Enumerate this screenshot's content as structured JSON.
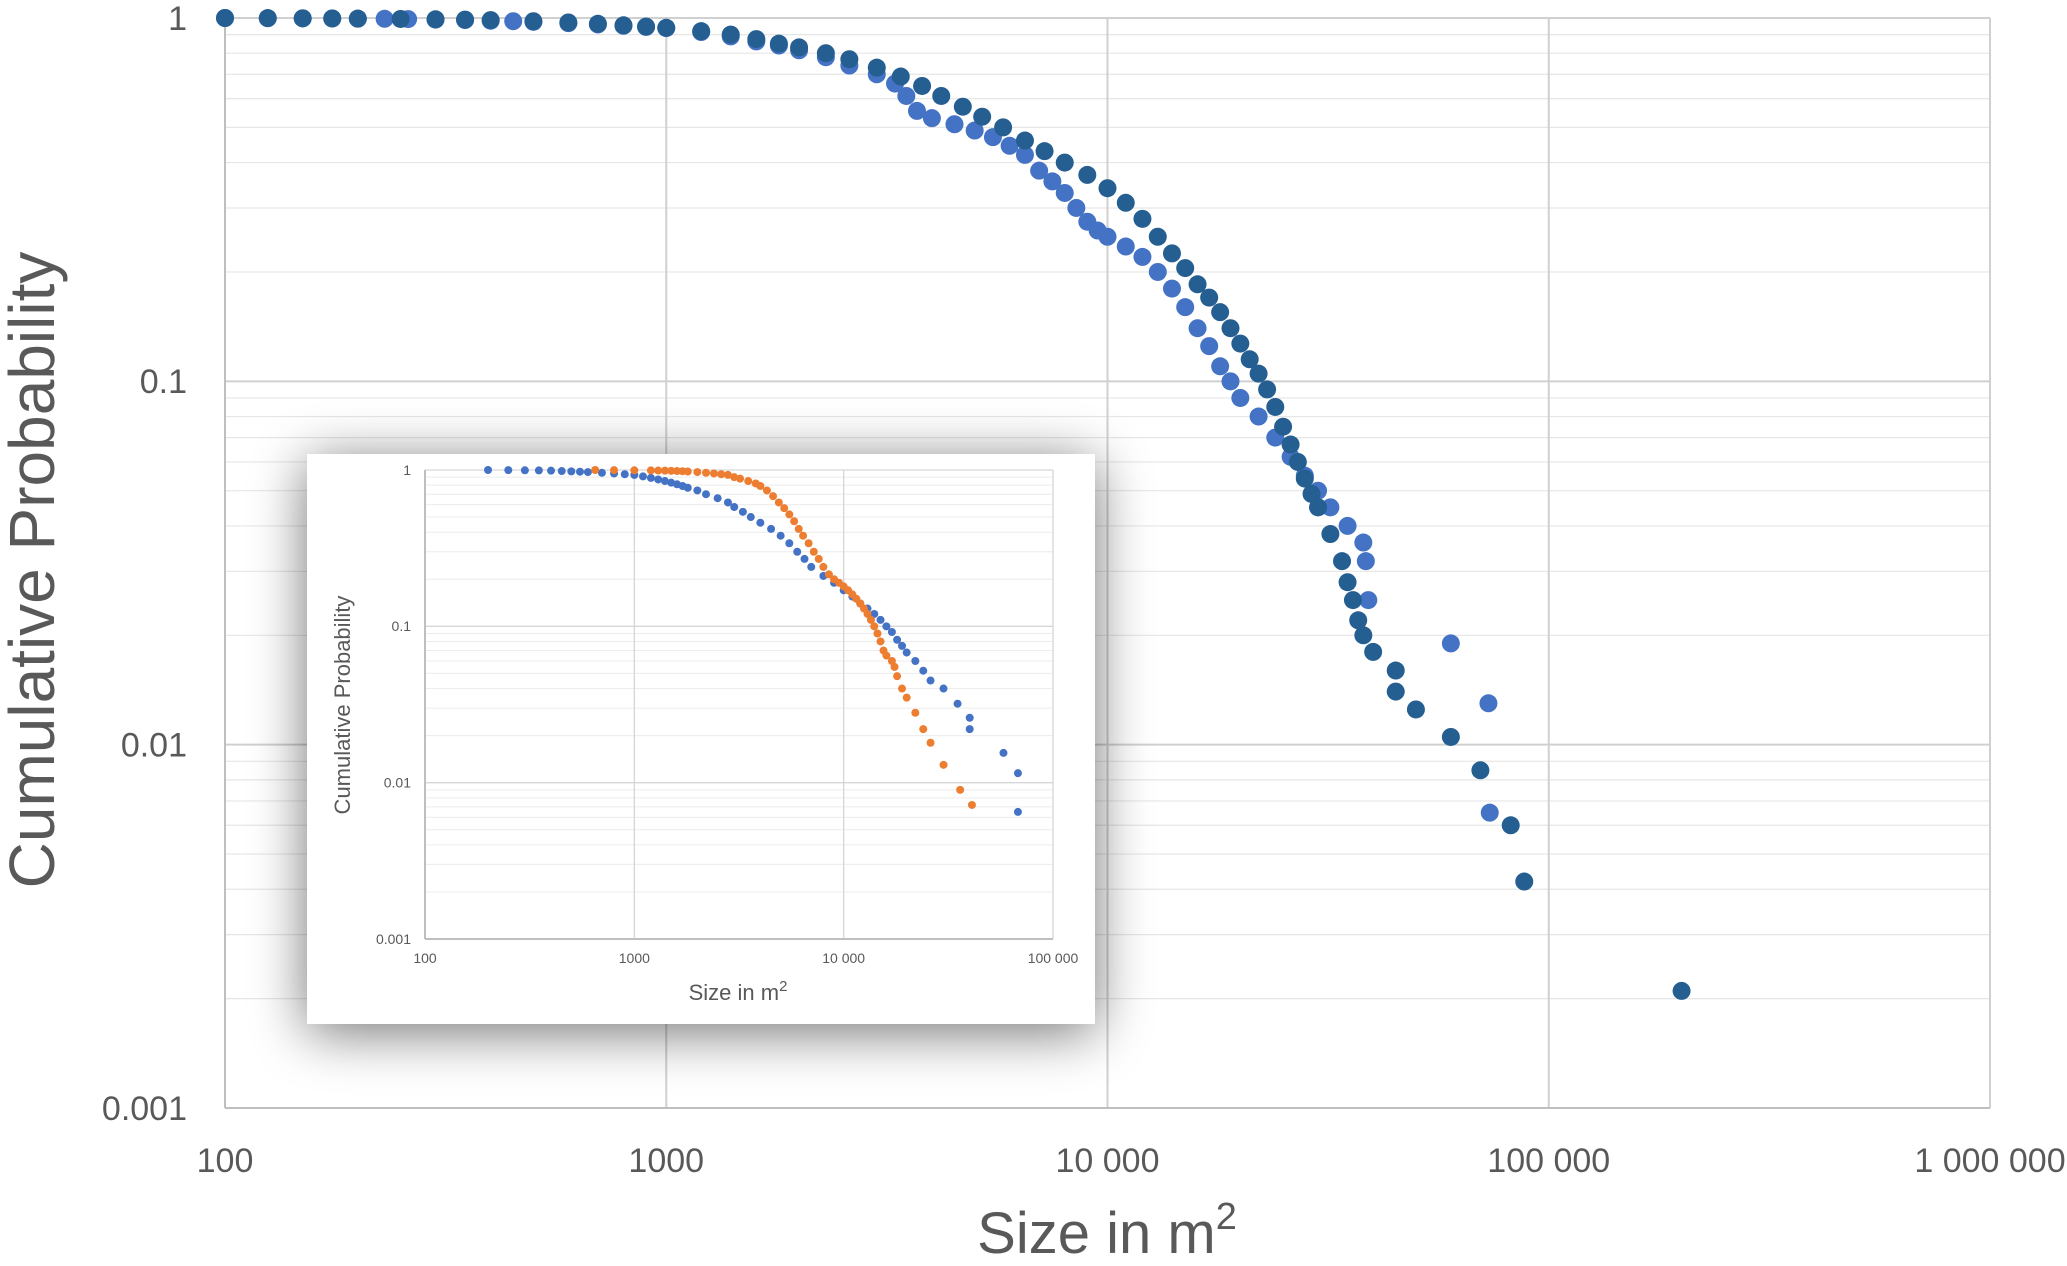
{
  "chart_data": [
    {
      "type": "scatter",
      "title": "",
      "xlabel": "Size in m",
      "xlabel_sup": "2",
      "ylabel": "Cumulative Probability",
      "x_scale": "log",
      "y_scale": "log",
      "xlim": [
        100,
        1000000
      ],
      "ylim": [
        0.001,
        1
      ],
      "x_ticks": [
        100,
        1000,
        10000,
        100000,
        1000000
      ],
      "x_tick_labels": [
        "100",
        "1000",
        "10 000",
        "100 000",
        "1 000 000"
      ],
      "y_ticks": [
        0.001,
        0.01,
        0.1,
        1
      ],
      "y_tick_labels": [
        "0.001",
        "0.01",
        "0.1",
        "1"
      ],
      "grid": true,
      "legend": "none",
      "series": [
        {
          "color": "#4472C4",
          "points": [
            [
              100,
              1
            ],
            [
              125,
              0.999
            ],
            [
              150,
              0.998
            ],
            [
              175,
              0.997
            ],
            [
              200,
              0.996
            ],
            [
              230,
              0.995
            ],
            [
              260,
              0.993
            ],
            [
              300,
              0.99
            ],
            [
              350,
              0.987
            ],
            [
              400,
              0.983
            ],
            [
              450,
              0.98
            ],
            [
              500,
              0.976
            ],
            [
              600,
              0.968
            ],
            [
              700,
              0.96
            ],
            [
              800,
              0.952
            ],
            [
              900,
              0.945
            ],
            [
              1000,
              0.938
            ],
            [
              1200,
              0.915
            ],
            [
              1400,
              0.89
            ],
            [
              1600,
              0.862
            ],
            [
              1800,
              0.84
            ],
            [
              2000,
              0.815
            ],
            [
              2300,
              0.78
            ],
            [
              2600,
              0.74
            ],
            [
              3000,
              0.7
            ],
            [
              3300,
              0.66
            ],
            [
              3500,
              0.61
            ],
            [
              3700,
              0.555
            ],
            [
              4000,
              0.53
            ],
            [
              4500,
              0.51
            ],
            [
              5000,
              0.49
            ],
            [
              5500,
              0.47
            ],
            [
              6000,
              0.445
            ],
            [
              6500,
              0.42
            ],
            [
              7000,
              0.38
            ],
            [
              7500,
              0.355
            ],
            [
              8000,
              0.33
            ],
            [
              8500,
              0.3
            ],
            [
              9000,
              0.275
            ],
            [
              9500,
              0.26
            ],
            [
              10000,
              0.25
            ],
            [
              11000,
              0.235
            ],
            [
              12000,
              0.22
            ],
            [
              13000,
              0.2
            ],
            [
              14000,
              0.18
            ],
            [
              15000,
              0.16
            ],
            [
              16000,
              0.14
            ],
            [
              17000,
              0.125
            ],
            [
              18000,
              0.11
            ],
            [
              19000,
              0.1
            ],
            [
              20000,
              0.09
            ],
            [
              22000,
              0.08
            ],
            [
              24000,
              0.07
            ],
            [
              26000,
              0.062
            ],
            [
              28000,
              0.055
            ],
            [
              30000,
              0.05
            ],
            [
              32000,
              0.045
            ],
            [
              35000,
              0.04
            ],
            [
              38000,
              0.036
            ],
            [
              39000,
              0.025
            ],
            [
              38500,
              0.032
            ],
            [
              60000,
              0.019
            ],
            [
              73000,
              0.013
            ],
            [
              73500,
              0.0065
            ]
          ]
        },
        {
          "color": "#255E91",
          "points": [
            [
              100,
              1
            ],
            [
              125,
              0.999
            ],
            [
              150,
              0.998
            ],
            [
              175,
              0.997
            ],
            [
              200,
              0.996
            ],
            [
              250,
              0.994
            ],
            [
              300,
              0.992
            ],
            [
              350,
              0.99
            ],
            [
              400,
              0.987
            ],
            [
              500,
              0.98
            ],
            [
              600,
              0.972
            ],
            [
              700,
              0.964
            ],
            [
              800,
              0.955
            ],
            [
              900,
              0.947
            ],
            [
              1000,
              0.94
            ],
            [
              1200,
              0.92
            ],
            [
              1400,
              0.9
            ],
            [
              1600,
              0.875
            ],
            [
              1800,
              0.85
            ],
            [
              2000,
              0.83
            ],
            [
              2300,
              0.8
            ],
            [
              2600,
              0.77
            ],
            [
              3000,
              0.73
            ],
            [
              3400,
              0.69
            ],
            [
              3800,
              0.65
            ],
            [
              4200,
              0.61
            ],
            [
              4700,
              0.57
            ],
            [
              5200,
              0.535
            ],
            [
              5800,
              0.5
            ],
            [
              6500,
              0.46
            ],
            [
              7200,
              0.43
            ],
            [
              8000,
              0.4
            ],
            [
              9000,
              0.37
            ],
            [
              10000,
              0.34
            ],
            [
              11000,
              0.31
            ],
            [
              12000,
              0.28
            ],
            [
              13000,
              0.25
            ],
            [
              14000,
              0.225
            ],
            [
              15000,
              0.205
            ],
            [
              16000,
              0.185
            ],
            [
              17000,
              0.17
            ],
            [
              18000,
              0.155
            ],
            [
              19000,
              0.14
            ],
            [
              20000,
              0.127
            ],
            [
              21000,
              0.115
            ],
            [
              22000,
              0.105
            ],
            [
              23000,
              0.095
            ],
            [
              24000,
              0.085
            ],
            [
              25000,
              0.075
            ],
            [
              26000,
              0.067
            ],
            [
              27000,
              0.06
            ],
            [
              28000,
              0.054
            ],
            [
              29000,
              0.049
            ],
            [
              30000,
              0.045
            ],
            [
              32000,
              0.038
            ],
            [
              34000,
              0.032
            ],
            [
              35000,
              0.028
            ],
            [
              36000,
              0.025
            ],
            [
              37000,
              0.022
            ],
            [
              38000,
              0.02
            ],
            [
              40000,
              0.018
            ],
            [
              45000,
              0.016
            ],
            [
              45000,
              0.014
            ],
            [
              50000,
              0.0125
            ],
            [
              60000,
              0.0105
            ],
            [
              70000,
              0.0085
            ],
            [
              82000,
              0.006
            ],
            [
              88000,
              0.0042
            ],
            [
              200000,
              0.0021
            ]
          ]
        }
      ]
    },
    {
      "type": "scatter",
      "title": "",
      "xlabel": "Size in m",
      "xlabel_sup": "2",
      "ylabel": "Cumulative Probability",
      "x_scale": "log",
      "y_scale": "log",
      "xlim": [
        100,
        100000
      ],
      "ylim": [
        0.001,
        1
      ],
      "x_ticks": [
        100,
        1000,
        10000,
        100000
      ],
      "x_tick_labels": [
        "100",
        "1000",
        "10 000",
        "100 000"
      ],
      "y_ticks": [
        0.001,
        0.01,
        0.1,
        1
      ],
      "y_tick_labels": [
        "0.001",
        "0.01",
        "0.1",
        "1"
      ],
      "grid": true,
      "legend": "none",
      "series": [
        {
          "color": "#4472C4",
          "points": [
            [
              200,
              1
            ],
            [
              250,
              0.998
            ],
            [
              300,
              0.996
            ],
            [
              350,
              0.994
            ],
            [
              400,
              0.99
            ],
            [
              450,
              0.985
            ],
            [
              500,
              0.98
            ],
            [
              550,
              0.975
            ],
            [
              600,
              0.97
            ],
            [
              700,
              0.96
            ],
            [
              800,
              0.95
            ],
            [
              900,
              0.94
            ],
            [
              1000,
              0.93
            ],
            [
              1100,
              0.91
            ],
            [
              1200,
              0.89
            ],
            [
              1300,
              0.87
            ],
            [
              1400,
              0.85
            ],
            [
              1500,
              0.83
            ],
            [
              1600,
              0.81
            ],
            [
              1700,
              0.79
            ],
            [
              1800,
              0.77
            ],
            [
              2000,
              0.74
            ],
            [
              2200,
              0.7
            ],
            [
              2500,
              0.66
            ],
            [
              2800,
              0.62
            ],
            [
              3000,
              0.58
            ],
            [
              3300,
              0.54
            ],
            [
              3600,
              0.5
            ],
            [
              4000,
              0.46
            ],
            [
              4500,
              0.42
            ],
            [
              5000,
              0.38
            ],
            [
              5500,
              0.34
            ],
            [
              6000,
              0.3
            ],
            [
              6500,
              0.27
            ],
            [
              7000,
              0.24
            ],
            [
              8000,
              0.21
            ],
            [
              9000,
              0.19
            ],
            [
              10000,
              0.17
            ],
            [
              11000,
              0.155
            ],
            [
              12000,
              0.14
            ],
            [
              13000,
              0.13
            ],
            [
              14000,
              0.12
            ],
            [
              15000,
              0.11
            ],
            [
              16000,
              0.1
            ],
            [
              17000,
              0.092
            ],
            [
              18000,
              0.082
            ],
            [
              19000,
              0.075
            ],
            [
              20000,
              0.068
            ],
            [
              22000,
              0.06
            ],
            [
              24000,
              0.052
            ],
            [
              26000,
              0.045
            ],
            [
              30000,
              0.04
            ],
            [
              35000,
              0.032
            ],
            [
              40000,
              0.026
            ],
            [
              40000,
              0.022
            ],
            [
              58000,
              0.0155
            ],
            [
              68000,
              0.0115
            ],
            [
              68000,
              0.0065
            ]
          ]
        },
        {
          "color": "#ED7D31",
          "points": [
            [
              650,
              1
            ],
            [
              800,
              0.998
            ],
            [
              1000,
              0.996
            ],
            [
              1200,
              0.994
            ],
            [
              1300,
              0.992
            ],
            [
              1400,
              0.99
            ],
            [
              1500,
              0.988
            ],
            [
              1600,
              0.985
            ],
            [
              1700,
              0.982
            ],
            [
              1800,
              0.978
            ],
            [
              2000,
              0.97
            ],
            [
              2200,
              0.96
            ],
            [
              2400,
              0.95
            ],
            [
              2600,
              0.94
            ],
            [
              2800,
              0.93
            ],
            [
              3000,
              0.9
            ],
            [
              3200,
              0.88
            ],
            [
              3500,
              0.85
            ],
            [
              3800,
              0.82
            ],
            [
              4000,
              0.79
            ],
            [
              4300,
              0.74
            ],
            [
              4600,
              0.68
            ],
            [
              4900,
              0.62
            ],
            [
              5200,
              0.57
            ],
            [
              5500,
              0.52
            ],
            [
              5800,
              0.47
            ],
            [
              6100,
              0.42
            ],
            [
              6400,
              0.38
            ],
            [
              6800,
              0.34
            ],
            [
              7200,
              0.3
            ],
            [
              7600,
              0.27
            ],
            [
              8000,
              0.24
            ],
            [
              8500,
              0.215
            ],
            [
              9000,
              0.2
            ],
            [
              9500,
              0.19
            ],
            [
              10000,
              0.18
            ],
            [
              10500,
              0.17
            ],
            [
              11000,
              0.16
            ],
            [
              11500,
              0.15
            ],
            [
              12000,
              0.14
            ],
            [
              12500,
              0.13
            ],
            [
              13000,
              0.12
            ],
            [
              13500,
              0.11
            ],
            [
              14000,
              0.1
            ],
            [
              14500,
              0.09
            ],
            [
              15000,
              0.08
            ],
            [
              15500,
              0.07
            ],
            [
              16000,
              0.065
            ],
            [
              17000,
              0.06
            ],
            [
              17500,
              0.055
            ],
            [
              18000,
              0.048
            ],
            [
              19000,
              0.04
            ],
            [
              20000,
              0.035
            ],
            [
              22000,
              0.028
            ],
            [
              24000,
              0.022
            ],
            [
              26000,
              0.018
            ],
            [
              30000,
              0.013
            ],
            [
              36000,
              0.009
            ],
            [
              41000,
              0.0072
            ]
          ]
        }
      ]
    }
  ]
}
